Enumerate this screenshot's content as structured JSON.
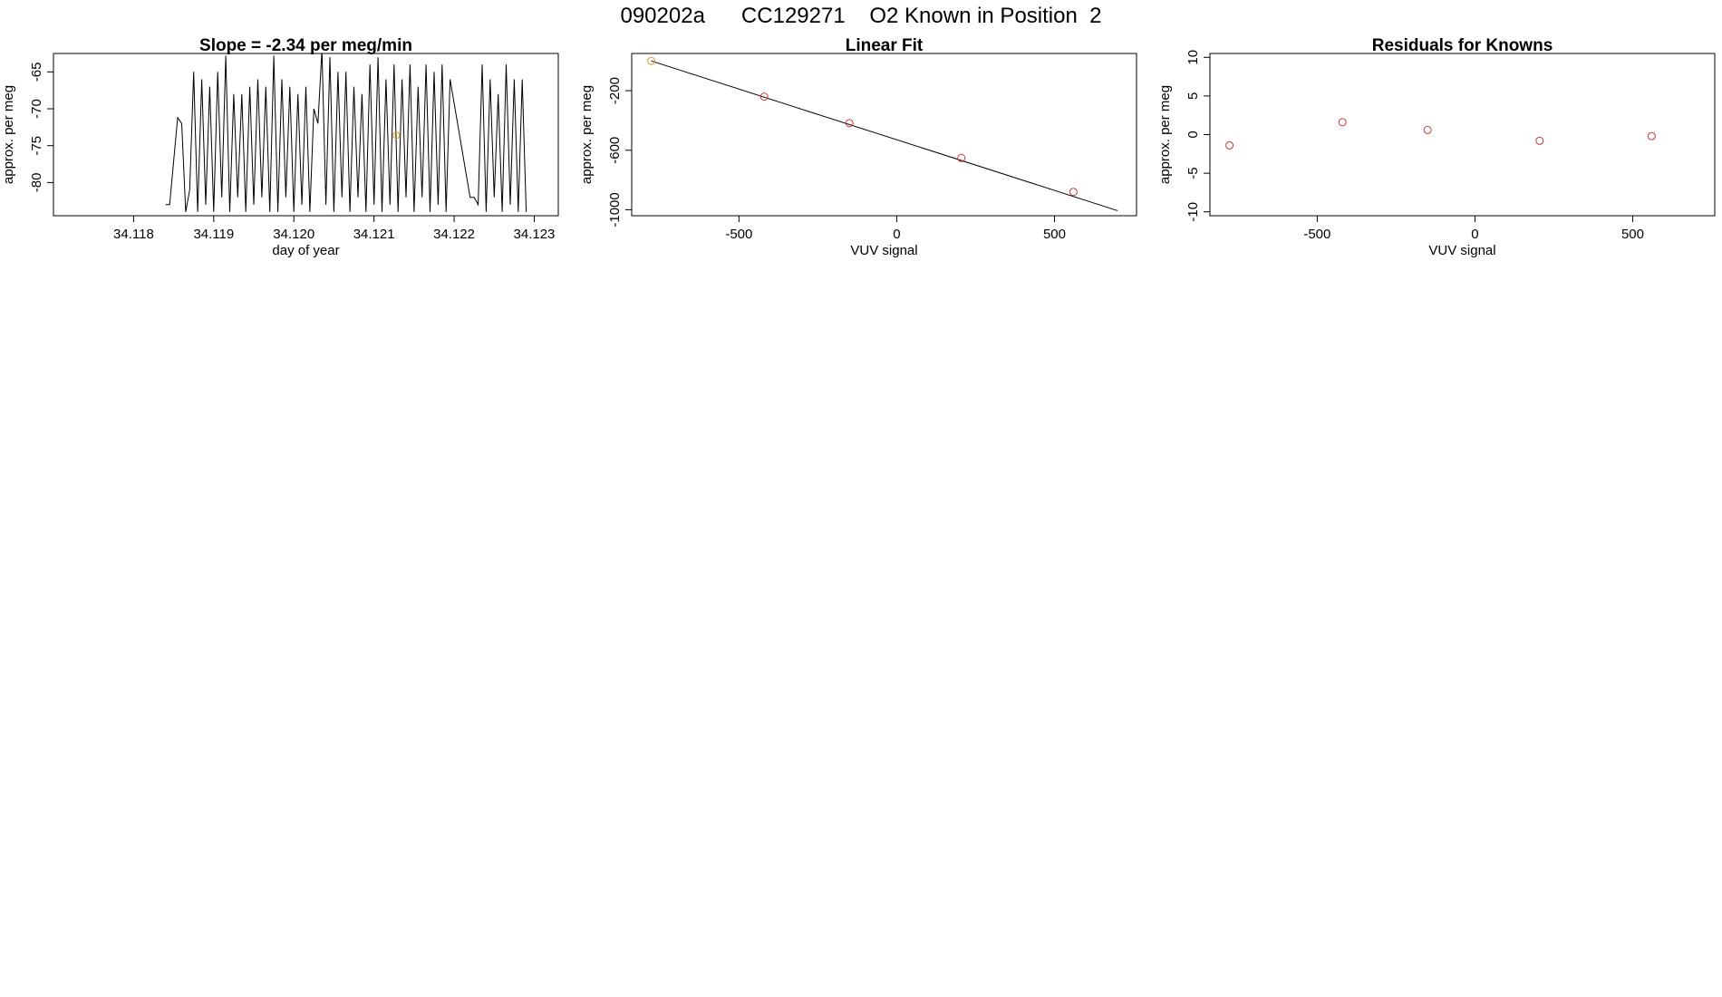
{
  "figure_title": "090202a      CC129271    O2 Known in Position  2",
  "colors": {
    "line": "#000000",
    "point": "#cc3333",
    "highlight": "#e69a1a",
    "fit_line": "#000000"
  },
  "chart_data": [
    {
      "type": "line",
      "title": "Slope =  -2.34  per meg/min",
      "xlabel": "day of year",
      "ylabel": "approx. per meg",
      "xlim": [
        34.117,
        34.1233
      ],
      "ylim": [
        -84.5,
        -62.5
      ],
      "xticks": [
        "34.118",
        "34.119",
        "34.120",
        "34.121",
        "34.122",
        "34.123"
      ],
      "yticks": [
        "-65",
        "-70",
        "-75",
        "-80"
      ],
      "grid": false,
      "series": [
        {
          "values_x": [
            34.1184,
            34.11845,
            34.11855,
            34.1186,
            34.11865,
            34.1187,
            34.11875,
            34.1188,
            34.11885,
            34.1189,
            34.11895,
            34.119,
            34.11905,
            34.1191,
            34.11915,
            34.1192,
            34.11925,
            34.1193,
            34.11935,
            34.1194,
            34.11945,
            34.1195,
            34.11955,
            34.1196,
            34.11965,
            34.1197,
            34.11975,
            34.1198,
            34.11985,
            34.1199,
            34.11995,
            34.12,
            34.12005,
            34.1201,
            34.12015,
            34.1202,
            34.12025,
            34.1203,
            34.12035,
            34.1204,
            34.12045,
            34.1205,
            34.12055,
            34.1206,
            34.12065,
            34.1207,
            34.12075,
            34.1208,
            34.12085,
            34.1209,
            34.12095,
            34.121,
            34.12105,
            34.1211,
            34.12115,
            34.1212,
            34.12125,
            34.1213,
            34.12135,
            34.1214,
            34.12145,
            34.1215,
            34.12155,
            34.1216,
            34.12165,
            34.1217,
            34.12175,
            34.1218,
            34.12185,
            34.1219,
            34.12195,
            34.1222,
            34.12225,
            34.1223,
            34.12235,
            34.1224,
            34.12245,
            34.1225,
            34.12255,
            34.1226,
            34.12265,
            34.1227,
            34.12275,
            34.1228,
            34.12285,
            34.1229
          ],
          "values_y": [
            -83,
            -83,
            -71.2,
            -72,
            -84,
            -81,
            -65,
            -84,
            -66,
            -83,
            -67,
            -84,
            -65,
            -82,
            -62.8,
            -84,
            -68,
            -82,
            -68,
            -84,
            -67,
            -83,
            -66,
            -82,
            -67,
            -84,
            -62.8,
            -84,
            -66,
            -82,
            -67,
            -84,
            -68,
            -83,
            -67,
            -84,
            -70,
            -72,
            -62,
            -83,
            -63,
            -84,
            -65,
            -82,
            -65,
            -84,
            -67,
            -82,
            -68,
            -84,
            -64,
            -83,
            -63,
            -84,
            -66,
            -83,
            -64,
            -84,
            -66,
            -82,
            -64,
            -84,
            -67,
            -82,
            -64,
            -84,
            -65,
            -83,
            -64,
            -84,
            -66,
            -82,
            -82,
            -83,
            -64,
            -84,
            -66,
            -82,
            -68,
            -84,
            -64,
            -83,
            -66,
            -84,
            -66,
            -84
          ]
        }
      ],
      "highlight_point": {
        "x": 34.12128,
        "y": -73.6
      }
    },
    {
      "type": "scatter",
      "title": "Linear Fit",
      "xlabel": "VUV signal",
      "ylabel": "approx. per meg",
      "xlim": [
        -840,
        760
      ],
      "ylim": [
        -1040,
        50
      ],
      "xticks": [
        "-500",
        "0",
        "500"
      ],
      "yticks": [
        "-200",
        "-600",
        "-1000"
      ],
      "grid": false,
      "series": [
        {
          "name": "",
          "x": [
            -778,
            -420,
            -150,
            205,
            560
          ],
          "y": [
            0,
            -240,
            -418,
            -652,
            -880
          ]
        }
      ],
      "fit_line": {
        "x": [
          -778,
          700
        ],
        "y": [
          0,
          -1006
        ]
      },
      "highlight_index": 0
    },
    {
      "type": "scatter",
      "title": "Residuals for Knowns",
      "xlabel": "VUV signal",
      "ylabel": "approx. per meg",
      "xlim": [
        -840,
        760
      ],
      "ylim": [
        -10.5,
        10.5
      ],
      "xticks": [
        "-500",
        "0",
        "500"
      ],
      "yticks": [
        "10",
        "5",
        "0",
        "-5",
        "-10"
      ],
      "grid": false,
      "series": [
        {
          "name": "",
          "x": [
            -778,
            -420,
            -150,
            205,
            560
          ],
          "y": [
            -1.4,
            1.6,
            0.6,
            -0.8,
            -0.2
          ]
        }
      ]
    }
  ]
}
